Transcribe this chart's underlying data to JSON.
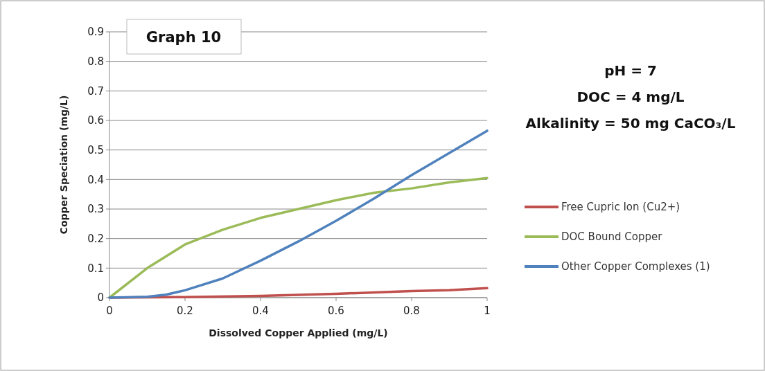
{
  "chart_data": {
    "type": "line",
    "title": "Graph 10",
    "xlabel": "Dissolved Copper Applied (mg/L)",
    "ylabel": "Copper Speciation (mg/L)",
    "annotations": [
      "pH = 7",
      "DOC = 4 mg/L",
      "Alkalinity = 50 mg CaCO₃/L"
    ],
    "series": [
      {
        "name": "Free Cupric Ion (Cu2+)",
        "color": "#c0504d",
        "x": [
          0,
          0.2,
          0.4,
          0.6,
          0.8,
          0.9,
          1
        ],
        "values": [
          0,
          0.002,
          0.006,
          0.013,
          0.022,
          0.025,
          0.032
        ]
      },
      {
        "name": "DOC Bound Copper",
        "color": "#9bbb59",
        "x": [
          0,
          0.1,
          0.2,
          0.3,
          0.4,
          0.5,
          0.6,
          0.7,
          0.8,
          0.9,
          1
        ],
        "values": [
          0,
          0.1,
          0.18,
          0.23,
          0.27,
          0.3,
          0.33,
          0.355,
          0.37,
          0.39,
          0.405
        ]
      },
      {
        "name": "Other Copper Complexes (1)",
        "color": "#4f81bd",
        "x": [
          0,
          0.1,
          0.15,
          0.2,
          0.3,
          0.4,
          0.5,
          0.6,
          0.7,
          0.8,
          0.9,
          1
        ],
        "values": [
          0,
          0.003,
          0.01,
          0.025,
          0.065,
          0.125,
          0.19,
          0.26,
          0.335,
          0.415,
          0.49,
          0.565
        ]
      }
    ],
    "xlim": [
      0,
      1
    ],
    "xticks": [
      0,
      0.2,
      0.4,
      0.6,
      0.8,
      1
    ],
    "ylim": [
      0,
      0.9
    ],
    "yticks": [
      0,
      0.1,
      0.2,
      0.3,
      0.4,
      0.5,
      0.6,
      0.7,
      0.8,
      0.9
    ],
    "grid": "y",
    "legend": "right",
    "marker": "none",
    "line_style": "solid"
  }
}
